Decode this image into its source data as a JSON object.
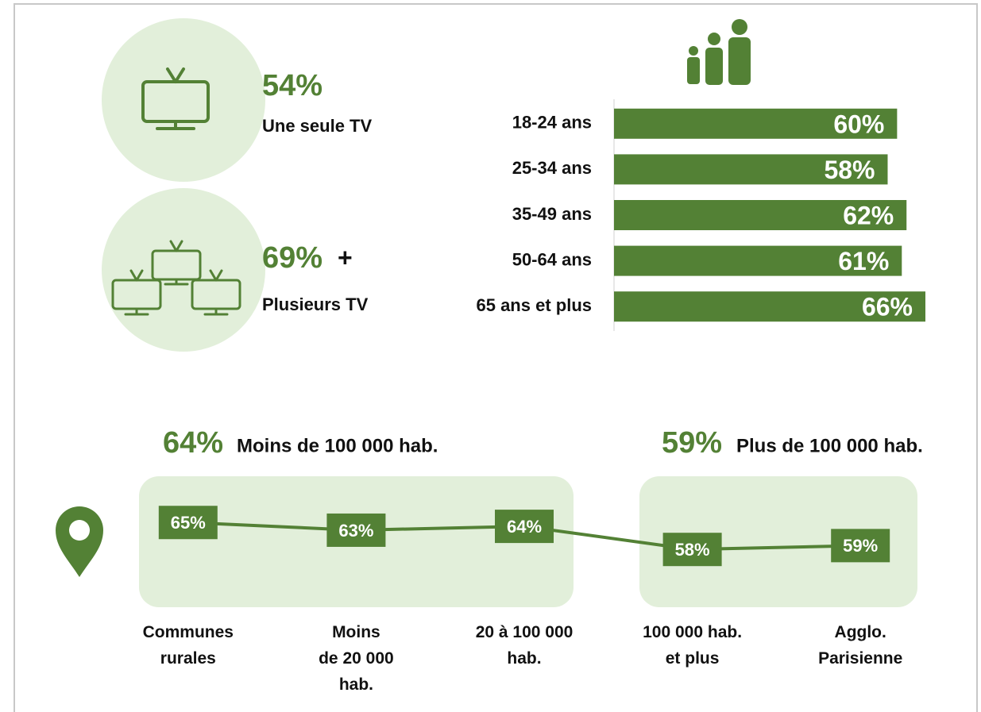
{
  "stats": [
    {
      "value": "54%",
      "label": "Une seule TV"
    },
    {
      "value": "69%",
      "suffix": "+",
      "label": "Plusieurs TV"
    }
  ],
  "chart_data": [
    {
      "type": "bar",
      "orientation": "horizontal",
      "categories": [
        "18-24 ans",
        "25-34 ans",
        "35-49 ans",
        "50-64 ans",
        "65 ans et plus"
      ],
      "values": [
        60,
        58,
        62,
        61,
        66
      ],
      "value_labels": [
        "60%",
        "58%",
        "62%",
        "61%",
        "66%"
      ],
      "color": "#538135",
      "xlim": [
        0,
        66
      ]
    },
    {
      "type": "line",
      "categories": [
        "Communes\nrurales",
        "Moins\nde 20 000\nhab.",
        "20 à 100 000\nhab.",
        "100 000 hab.\net plus",
        "Agglo.\nParisienne"
      ],
      "values": [
        65,
        63,
        64,
        58,
        59
      ],
      "value_labels": [
        "65%",
        "63%",
        "64%",
        "58%",
        "59%"
      ],
      "color": "#538135",
      "ylim": [
        50,
        70
      ],
      "groups": [
        {
          "value": "64%",
          "label": "Moins de 100 000 hab."
        },
        {
          "value": "59%",
          "label": "Plus de 100 000 hab."
        }
      ]
    }
  ]
}
